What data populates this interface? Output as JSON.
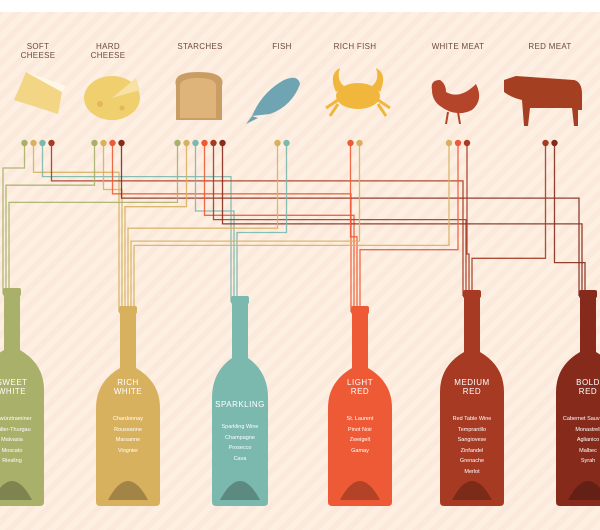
{
  "foods": [
    {
      "label": "SOFT CHEESE"
    },
    {
      "label": "HARD CHEESE"
    },
    {
      "label": "STARCHES"
    },
    {
      "label": "FISH"
    },
    {
      "label": "RICH FISH"
    },
    {
      "label": "WHITE MEAT"
    },
    {
      "label": "RED MEAT"
    }
  ],
  "wines": [
    {
      "label": "SWEET WHITE",
      "varietals": [
        "Gewürztraminer",
        "Müller-Thurgau",
        "Malvasia",
        "Moscato",
        "Riesling"
      ]
    },
    {
      "label": "RICH WHITE",
      "varietals": [
        "Chardonnay",
        "Roussanne",
        "Marsanne",
        "Viognier"
      ]
    },
    {
      "label": "SPARKLING",
      "varietals": [
        "Sparkling Wine",
        "Champagne",
        "Prosecco",
        "Cava"
      ]
    },
    {
      "label": "LIGHT RED",
      "varietals": [
        "St. Laurent",
        "Pinot Noir",
        "Zweigelt",
        "Gamay"
      ]
    },
    {
      "label": "MEDIUM RED",
      "varietals": [
        "Red Table Wine",
        "Tempranillo",
        "Sangiovese",
        "Zinfandel",
        "Grenache",
        "Merlot"
      ]
    },
    {
      "label": "BOLD RED",
      "varietals": [
        "Cabernet Sauvignon",
        "Monastrell",
        "Aglianico",
        "Malbec",
        "Syrah"
      ]
    }
  ]
}
